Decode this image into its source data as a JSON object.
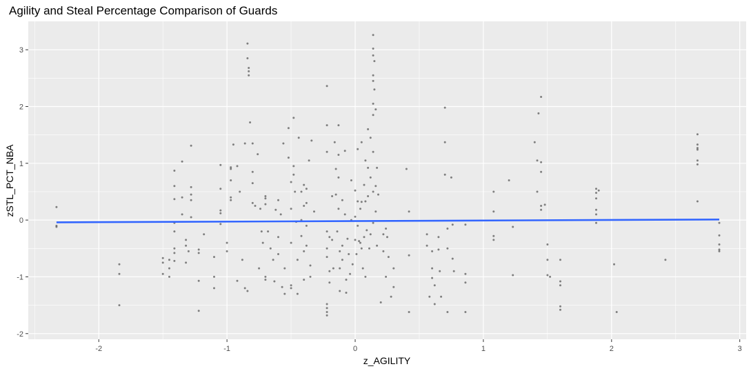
{
  "chart_data": {
    "type": "scatter",
    "title": "Agility and Steal Percentage Comparison of Guards",
    "xlabel": "z_AGILITY",
    "ylabel": "zSTL_PCT_NBA",
    "xlim": [
      -2.55,
      3.05
    ],
    "ylim": [
      -2.1,
      3.5
    ],
    "x_ticks": [
      -2,
      -1,
      0,
      1,
      2,
      3
    ],
    "y_ticks": [
      -2,
      -1,
      0,
      1,
      2,
      3
    ],
    "x_tick_labels": [
      "-2",
      "-1",
      "0",
      "1",
      "2",
      "3"
    ],
    "y_tick_labels": [
      "-2",
      "-1",
      "0",
      "1",
      "2",
      "3"
    ],
    "grid": true,
    "colors": {
      "panel": "#ebebeb",
      "grid": "#ffffff",
      "points": "#5a5a5a",
      "line": "#3366ff"
    },
    "trend": {
      "x": [
        -2.33,
        2.84
      ],
      "y": [
        -0.04,
        0.01
      ]
    },
    "points": [
      [
        -2.33,
        0.23
      ],
      [
        -2.33,
        -0.1
      ],
      [
        -2.33,
        -0.12
      ],
      [
        -1.84,
        -0.78
      ],
      [
        -1.84,
        -0.95
      ],
      [
        -1.84,
        -1.5
      ],
      [
        -1.5,
        -0.67
      ],
      [
        -1.5,
        -0.75
      ],
      [
        -1.5,
        -0.95
      ],
      [
        -1.45,
        -0.7
      ],
      [
        -1.45,
        -0.85
      ],
      [
        -1.45,
        -1.0
      ],
      [
        -1.41,
        0.87
      ],
      [
        -1.41,
        0.6
      ],
      [
        -1.41,
        0.37
      ],
      [
        -1.41,
        -0.05
      ],
      [
        -1.41,
        -0.2
      ],
      [
        -1.41,
        -0.5
      ],
      [
        -1.41,
        -0.58
      ],
      [
        -1.41,
        -0.72
      ],
      [
        -1.35,
        1.03
      ],
      [
        -1.35,
        0.4
      ],
      [
        -1.35,
        0.1
      ],
      [
        -1.32,
        -0.35
      ],
      [
        -1.32,
        -0.45
      ],
      [
        -1.32,
        -0.75
      ],
      [
        -1.3,
        -0.55
      ],
      [
        -1.28,
        1.31
      ],
      [
        -1.28,
        0.58
      ],
      [
        -1.28,
        0.45
      ],
      [
        -1.28,
        0.35
      ],
      [
        -1.28,
        0.05
      ],
      [
        -1.22,
        -0.52
      ],
      [
        -1.22,
        -0.58
      ],
      [
        -1.22,
        -1.07
      ],
      [
        -1.22,
        -1.6
      ],
      [
        -1.18,
        -0.25
      ],
      [
        -1.1,
        -0.65
      ],
      [
        -1.1,
        -1.0
      ],
      [
        -1.1,
        -1.2
      ],
      [
        -1.05,
        0.97
      ],
      [
        -1.05,
        0.55
      ],
      [
        -1.05,
        0.17
      ],
      [
        -1.05,
        0.12
      ],
      [
        -1.05,
        -0.07
      ],
      [
        -1.0,
        -0.4
      ],
      [
        -1.0,
        -0.55
      ],
      [
        -0.97,
        0.93
      ],
      [
        -0.97,
        0.9
      ],
      [
        -0.97,
        0.7
      ],
      [
        -0.97,
        0.4
      ],
      [
        -0.97,
        0.35
      ],
      [
        -0.95,
        1.33
      ],
      [
        -0.92,
        0.95
      ],
      [
        -0.92,
        -1.07
      ],
      [
        -0.9,
        0.5
      ],
      [
        -0.88,
        -0.7
      ],
      [
        -0.86,
        1.35
      ],
      [
        -0.86,
        -1.2
      ],
      [
        -0.84,
        3.11
      ],
      [
        -0.84,
        2.85
      ],
      [
        -0.84,
        -1.25
      ],
      [
        -0.83,
        2.68
      ],
      [
        -0.83,
        2.62
      ],
      [
        -0.83,
        2.55
      ],
      [
        -0.82,
        1.72
      ],
      [
        -0.8,
        1.35
      ],
      [
        -0.8,
        0.85
      ],
      [
        -0.8,
        0.65
      ],
      [
        -0.8,
        0.3
      ],
      [
        -0.78,
        0.25
      ],
      [
        -0.76,
        1.16
      ],
      [
        -0.75,
        -0.85
      ],
      [
        -0.74,
        0.2
      ],
      [
        -0.73,
        -0.2
      ],
      [
        -0.72,
        -0.4
      ],
      [
        -0.7,
        0.42
      ],
      [
        -0.7,
        0.38
      ],
      [
        -0.7,
        0.28
      ],
      [
        -0.7,
        -1.0
      ],
      [
        -0.7,
        -1.05
      ],
      [
        -0.68,
        -0.2
      ],
      [
        -0.66,
        -0.5
      ],
      [
        -0.64,
        -0.7
      ],
      [
        -0.63,
        -1.08
      ],
      [
        -0.62,
        0.18
      ],
      [
        -0.6,
        0.35
      ],
      [
        -0.6,
        -0.3
      ],
      [
        -0.6,
        -0.6
      ],
      [
        -0.58,
        0.1
      ],
      [
        -0.57,
        -1.18
      ],
      [
        -0.56,
        1.35
      ],
      [
        -0.55,
        -1.3
      ],
      [
        -0.55,
        -0.85
      ],
      [
        -0.52,
        1.62
      ],
      [
        -0.52,
        1.1
      ],
      [
        -0.5,
        0.67
      ],
      [
        -0.5,
        0.2
      ],
      [
        -0.5,
        -0.4
      ],
      [
        -0.5,
        -1.15
      ],
      [
        -0.5,
        -1.2
      ],
      [
        -0.48,
        1.8
      ],
      [
        -0.48,
        0.95
      ],
      [
        -0.48,
        0.8
      ],
      [
        -0.47,
        0.5
      ],
      [
        -0.46,
        -0.03
      ],
      [
        -0.45,
        -0.7
      ],
      [
        -0.45,
        -1.3
      ],
      [
        -0.44,
        1.45
      ],
      [
        -0.42,
        0.5
      ],
      [
        -0.42,
        0.0
      ],
      [
        -0.42,
        -0.28
      ],
      [
        -0.4,
        0.62
      ],
      [
        -0.4,
        0.25
      ],
      [
        -0.4,
        -0.55
      ],
      [
        -0.4,
        -1.05
      ],
      [
        -0.38,
        0.55
      ],
      [
        -0.38,
        0.3
      ],
      [
        -0.38,
        -0.1
      ],
      [
        -0.38,
        -0.45
      ],
      [
        -0.36,
        1.05
      ],
      [
        -0.35,
        -0.8
      ],
      [
        -0.35,
        -1.0
      ],
      [
        -0.34,
        1.4
      ],
      [
        -0.32,
        0.15
      ],
      [
        -0.22,
        2.36
      ],
      [
        -0.22,
        1.67
      ],
      [
        -0.22,
        1.2
      ],
      [
        -0.22,
        -0.2
      ],
      [
        -0.22,
        -0.5
      ],
      [
        -0.22,
        -0.65
      ],
      [
        -0.22,
        -1.48
      ],
      [
        -0.22,
        -1.55
      ],
      [
        -0.22,
        -1.62
      ],
      [
        -0.22,
        -1.68
      ],
      [
        -0.2,
        -0.3
      ],
      [
        -0.2,
        -0.9
      ],
      [
        -0.2,
        -1.1
      ],
      [
        -0.18,
        0.42
      ],
      [
        -0.18,
        -0.35
      ],
      [
        -0.17,
        -0.85
      ],
      [
        -0.16,
        1.37
      ],
      [
        -0.15,
        0.9
      ],
      [
        -0.15,
        0.45
      ],
      [
        -0.14,
        -0.2
      ],
      [
        -0.13,
        1.67
      ],
      [
        -0.13,
        1.15
      ],
      [
        -0.13,
        0.75
      ],
      [
        -0.13,
        0.2
      ],
      [
        -0.12,
        -0.55
      ],
      [
        -0.12,
        -0.85
      ],
      [
        -0.12,
        -1.25
      ],
      [
        -0.1,
        0.35
      ],
      [
        -0.1,
        -0.45
      ],
      [
        -0.1,
        -0.7
      ],
      [
        -0.08,
        1.22
      ],
      [
        -0.08,
        0.1
      ],
      [
        -0.07,
        -1.05
      ],
      [
        -0.07,
        -1.28
      ],
      [
        -0.06,
        -0.33
      ],
      [
        -0.05,
        -0.6
      ],
      [
        -0.04,
        -0.95
      ],
      [
        -0.03,
        0.7
      ],
      [
        -0.03,
        0.0
      ],
      [
        -0.02,
        -0.78
      ],
      [
        0.0,
        0.52
      ],
      [
        0.0,
        0.06
      ],
      [
        0.0,
        -0.35
      ],
      [
        0.01,
        -0.6
      ],
      [
        0.02,
        1.25
      ],
      [
        0.02,
        0.33
      ],
      [
        0.02,
        -0.1
      ],
      [
        0.03,
        -0.37
      ],
      [
        0.04,
        0.2
      ],
      [
        0.04,
        -0.4
      ],
      [
        0.05,
        1.37
      ],
      [
        0.05,
        0.32
      ],
      [
        0.05,
        -0.5
      ],
      [
        0.06,
        -0.85
      ],
      [
        0.07,
        0.62
      ],
      [
        0.07,
        -0.3
      ],
      [
        0.08,
        1.05
      ],
      [
        0.08,
        0.33
      ],
      [
        0.08,
        -1.0
      ],
      [
        0.09,
        -0.18
      ],
      [
        0.1,
        1.6
      ],
      [
        0.1,
        0.92
      ],
      [
        0.1,
        0.42
      ],
      [
        0.11,
        -0.5
      ],
      [
        0.12,
        1.45
      ],
      [
        0.12,
        0.75
      ],
      [
        0.12,
        -0.25
      ],
      [
        0.14,
        3.26
      ],
      [
        0.14,
        3.02
      ],
      [
        0.14,
        2.9
      ],
      [
        0.14,
        2.55
      ],
      [
        0.14,
        2.45
      ],
      [
        0.14,
        2.05
      ],
      [
        0.14,
        1.85
      ],
      [
        0.14,
        1.2
      ],
      [
        0.14,
        0.5
      ],
      [
        0.14,
        -0.05
      ],
      [
        0.15,
        2.8
      ],
      [
        0.15,
        2.3
      ],
      [
        0.16,
        1.95
      ],
      [
        0.16,
        0.6
      ],
      [
        0.16,
        0.15
      ],
      [
        0.17,
        0.92
      ],
      [
        0.17,
        -0.45
      ],
      [
        0.18,
        0.45
      ],
      [
        0.2,
        -1.45
      ],
      [
        0.22,
        -0.25
      ],
      [
        0.22,
        -0.55
      ],
      [
        0.24,
        -0.15
      ],
      [
        0.24,
        -1.0
      ],
      [
        0.25,
        -0.3
      ],
      [
        0.26,
        -0.65
      ],
      [
        0.28,
        -1.35
      ],
      [
        0.3,
        -0.85
      ],
      [
        0.3,
        -1.18
      ],
      [
        0.4,
        0.9
      ],
      [
        0.42,
        0.15
      ],
      [
        0.42,
        -0.62
      ],
      [
        0.42,
        -1.62
      ],
      [
        0.56,
        -0.25
      ],
      [
        0.56,
        -0.45
      ],
      [
        0.58,
        -1.35
      ],
      [
        0.6,
        -0.55
      ],
      [
        0.6,
        -0.85
      ],
      [
        0.6,
        -1.02
      ],
      [
        0.62,
        -1.15
      ],
      [
        0.62,
        -1.48
      ],
      [
        0.65,
        -0.3
      ],
      [
        0.65,
        -0.52
      ],
      [
        0.66,
        -0.9
      ],
      [
        0.67,
        -1.35
      ],
      [
        0.7,
        1.98
      ],
      [
        0.7,
        1.37
      ],
      [
        0.7,
        0.8
      ],
      [
        0.72,
        -0.15
      ],
      [
        0.72,
        -0.5
      ],
      [
        0.72,
        -1.62
      ],
      [
        0.75,
        0.75
      ],
      [
        0.76,
        -0.08
      ],
      [
        0.76,
        -0.68
      ],
      [
        0.77,
        -0.9
      ],
      [
        0.86,
        -0.08
      ],
      [
        0.86,
        -1.62
      ],
      [
        0.86,
        -0.95
      ],
      [
        0.86,
        -1.1
      ],
      [
        1.08,
        0.5
      ],
      [
        1.08,
        0.15
      ],
      [
        1.08,
        -0.28
      ],
      [
        1.08,
        -0.35
      ],
      [
        1.2,
        0.7
      ],
      [
        1.23,
        -0.12
      ],
      [
        1.23,
        -0.97
      ],
      [
        1.4,
        1.37
      ],
      [
        1.42,
        1.05
      ],
      [
        1.42,
        0.5
      ],
      [
        1.43,
        1.88
      ],
      [
        1.45,
        2.17
      ],
      [
        1.45,
        1.02
      ],
      [
        1.45,
        0.85
      ],
      [
        1.45,
        0.25
      ],
      [
        1.45,
        0.18
      ],
      [
        1.48,
        0.27
      ],
      [
        1.5,
        -0.43
      ],
      [
        1.5,
        -0.7
      ],
      [
        1.5,
        -0.97
      ],
      [
        1.52,
        -1.0
      ],
      [
        1.6,
        -0.7
      ],
      [
        1.6,
        -1.08
      ],
      [
        1.6,
        -1.15
      ],
      [
        1.6,
        -1.52
      ],
      [
        1.6,
        -1.58
      ],
      [
        1.88,
        0.55
      ],
      [
        1.88,
        0.48
      ],
      [
        1.88,
        0.38
      ],
      [
        1.88,
        0.18
      ],
      [
        1.88,
        0.1
      ],
      [
        1.88,
        -0.05
      ],
      [
        1.9,
        0.52
      ],
      [
        2.02,
        -0.78
      ],
      [
        2.04,
        -1.62
      ],
      [
        2.42,
        -0.7
      ],
      [
        2.67,
        1.51
      ],
      [
        2.67,
        1.33
      ],
      [
        2.67,
        1.27
      ],
      [
        2.67,
        1.24
      ],
      [
        2.67,
        1.05
      ],
      [
        2.67,
        0.98
      ],
      [
        2.67,
        0.33
      ],
      [
        2.84,
        -0.05
      ],
      [
        2.84,
        -0.27
      ],
      [
        2.84,
        -0.43
      ],
      [
        2.84,
        -0.52
      ],
      [
        2.84,
        -0.55
      ]
    ]
  }
}
